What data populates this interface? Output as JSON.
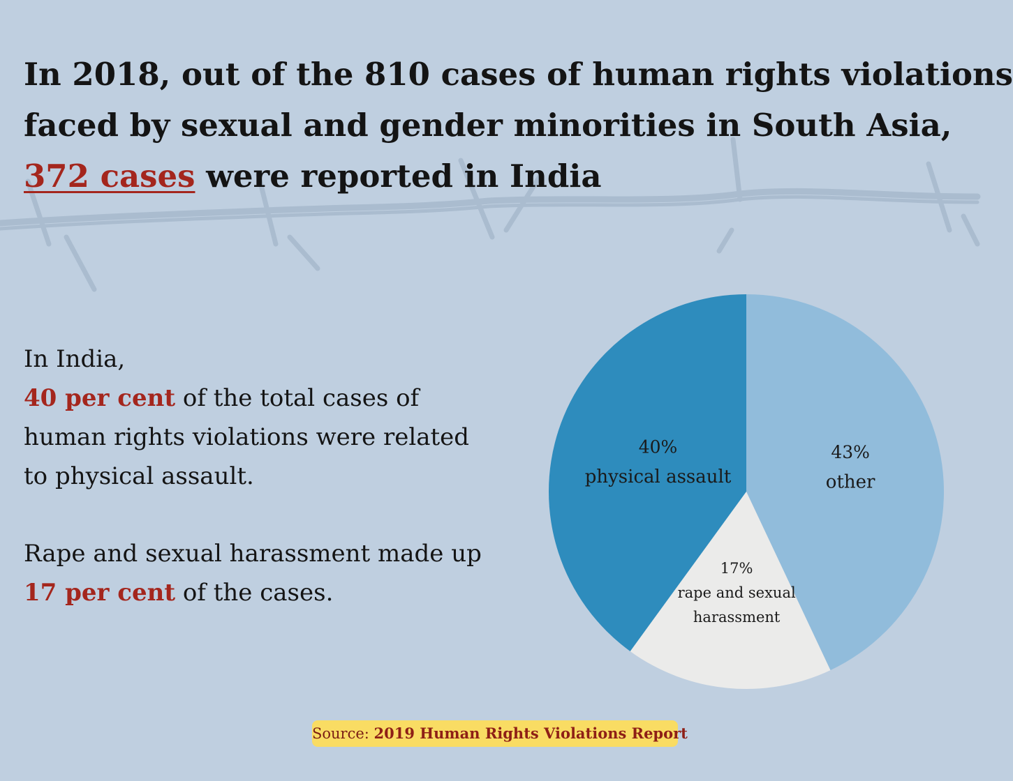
{
  "headline": {
    "line1": "In 2018, out of the 810 cases of human rights violations",
    "line2": "faced by sexual and gender minorities in South Asia,",
    "highlight": "372 cases",
    "line3_rest": " were reported in India"
  },
  "paragraph1": {
    "intro": "In India,",
    "highlight": "40 per cent",
    "text_after": " of the total cases of",
    "line3": "human rights violations were related",
    "line4": "to physical assault."
  },
  "paragraph2": {
    "line1": "Rape and sexual harassment made up",
    "highlight": "17 per cent",
    "text_after": " of the cases."
  },
  "source": {
    "prefix": "Source: ",
    "name": "2019 Human Rights Violations Report"
  },
  "colors": {
    "background": "#bfcfe0",
    "highlight": "#a4261d",
    "badge": "#f9dc63"
  },
  "chart_data": {
    "type": "pie",
    "start": "12 o'clock, clockwise",
    "slices": [
      {
        "percent_label": "43%",
        "label": "other",
        "value": 43,
        "color": "#91bcdb"
      },
      {
        "percent_label": "17%",
        "label_lines": [
          "rape and sexual",
          "harassment"
        ],
        "value": 17,
        "color": "#ebebea"
      },
      {
        "percent_label": "40%",
        "label": "physical assault",
        "value": 40,
        "color": "#2e8cbd"
      }
    ]
  }
}
